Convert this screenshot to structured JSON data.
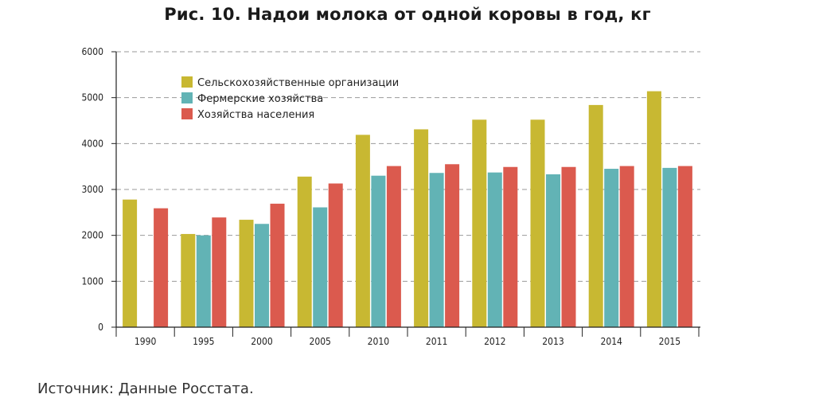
{
  "chart_data": {
    "type": "bar",
    "title": "Рис. 10. Надои молока от одной коровы в год, кг",
    "categories": [
      "1990",
      "1995",
      "2000",
      "2005",
      "2010",
      "2011",
      "2012",
      "2013",
      "2014",
      "2015"
    ],
    "series": [
      {
        "name": "Сельскохозяйственные организации",
        "color": "#c8b832",
        "values": [
          2780,
          2030,
          2340,
          3280,
          4190,
          4310,
          4520,
          4520,
          4840,
          5140
        ]
      },
      {
        "name": "Фермерские хозяйства",
        "color": "#62b3b5",
        "values": [
          null,
          2000,
          2250,
          2610,
          3300,
          3360,
          3370,
          3330,
          3450,
          3470
        ]
      },
      {
        "name": "Хозяйства населения",
        "color": "#db5a4e",
        "values": [
          2590,
          2390,
          2690,
          3130,
          3510,
          3550,
          3490,
          3490,
          3510,
          3510
        ]
      }
    ],
    "yticks": [
      0,
      1000,
      2000,
      3000,
      4000,
      5000,
      6000
    ],
    "ylim": [
      0,
      6000
    ],
    "grid": true,
    "legend_position": "top-left"
  },
  "source_text": "Источник: Данные Росстата."
}
